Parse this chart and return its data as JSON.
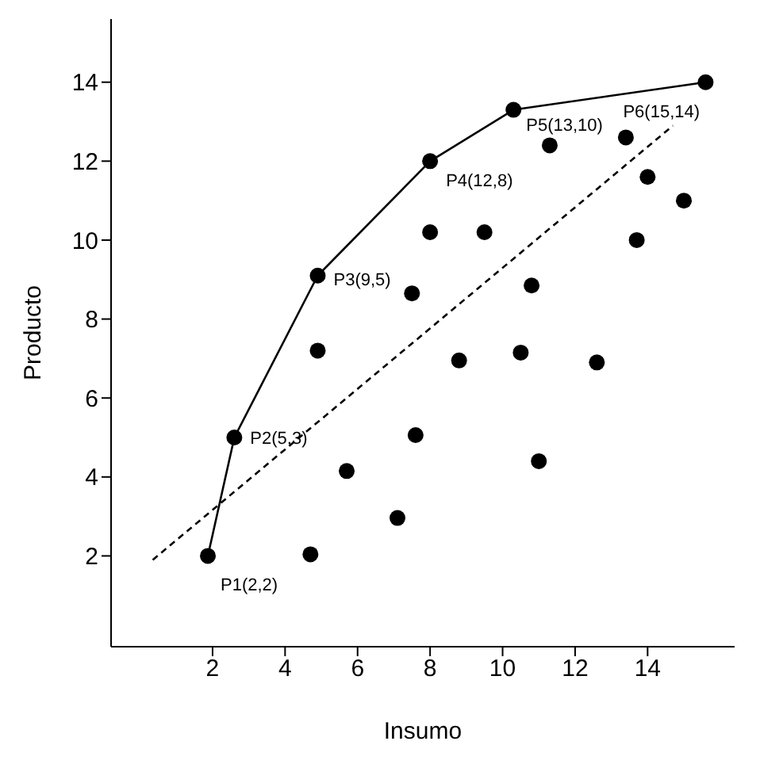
{
  "chart_data": {
    "type": "scatter",
    "xlabel": "Insumo",
    "ylabel": "Producto",
    "xlim": [
      -0.8,
      16.4
    ],
    "ylim": [
      -0.3,
      15.6
    ],
    "xticks": [
      2,
      4,
      6,
      8,
      10,
      12,
      14
    ],
    "yticks": [
      2,
      4,
      6,
      8,
      10,
      12,
      14
    ],
    "grid": false,
    "legend": false,
    "series": [
      {
        "type": "line",
        "color": "#000000",
        "marker": "circle",
        "line_style": "solid",
        "x": [
          1.87,
          2.6,
          4.9,
          8,
          10.3,
          15.6
        ],
        "values": [
          2,
          5,
          9.1,
          12,
          13.3,
          14
        ]
      },
      {
        "type": "scatter",
        "color": "#000000",
        "marker": "circle",
        "x": [
          11.3,
          13.4,
          14,
          15,
          13.7,
          8,
          9.5,
          7.5,
          10.8,
          4.9,
          8.8,
          10.5,
          12.6,
          7.6,
          5.7,
          11,
          7.1,
          4.7
        ],
        "values": [
          12.4,
          12.6,
          11.6,
          11,
          10,
          10.2,
          10.2,
          8.65,
          8.85,
          7.2,
          6.95,
          7.15,
          6.9,
          5.06,
          4.15,
          4.4,
          2.96,
          2.04
        ]
      },
      {
        "type": "line",
        "color": "#000000",
        "marker": "none",
        "line_style": "dashed",
        "x": [
          0.35,
          14.7
        ],
        "values": [
          1.9,
          12.9
        ]
      }
    ],
    "annotations": [
      {
        "text": "P1(2,2)",
        "x": 1.87,
        "y": 2
      },
      {
        "text": "P2(5,3)",
        "x": 2.6,
        "y": 5
      },
      {
        "text": "P3(9,5)",
        "x": 4.9,
        "y": 9.1
      },
      {
        "text": "P4(12,8)",
        "x": 8,
        "y": 12
      },
      {
        "text": "P5(13,10)",
        "x": 10.3,
        "y": 13.3
      },
      {
        "text": "P6(15,14)",
        "x": 15.6,
        "y": 14
      }
    ]
  }
}
